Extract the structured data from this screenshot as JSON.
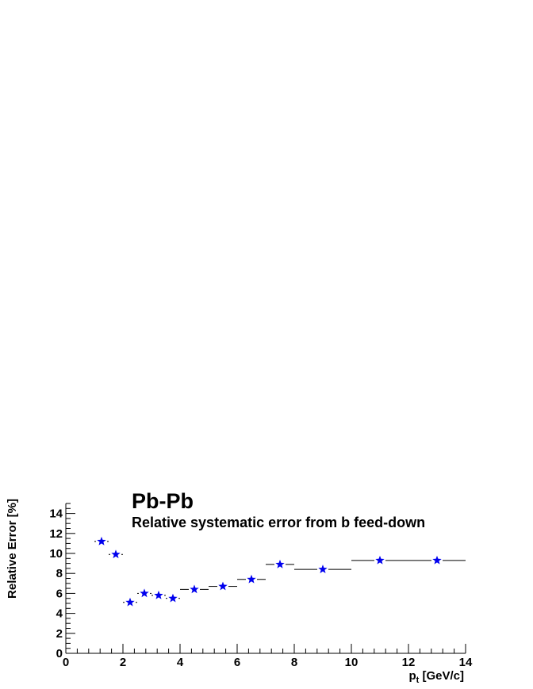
{
  "chart_data": {
    "type": "scatter",
    "title": "Pb-Pb",
    "subtitle": "Relative systematic error from b feed-down",
    "xlabel_main": "p",
    "xlabel_sub": "t",
    "xlabel_rest": " [GeV/c]",
    "ylabel": "Relative Error [%]",
    "xlim": [
      0,
      14
    ],
    "ylim": [
      0,
      15
    ],
    "x_ticks": [
      0,
      2,
      4,
      6,
      8,
      10,
      12,
      14
    ],
    "y_ticks": [
      0,
      2,
      4,
      6,
      8,
      10,
      12,
      14
    ],
    "marker": "star",
    "marker_color": "#0000ee",
    "line_color": "#000000",
    "points": [
      {
        "x_low": 1.0,
        "x_high": 1.5,
        "y": 11.2
      },
      {
        "x_low": 1.5,
        "x_high": 2.0,
        "y": 9.9
      },
      {
        "x_low": 2.0,
        "x_high": 2.5,
        "y": 5.1
      },
      {
        "x_low": 2.5,
        "x_high": 3.0,
        "y": 6.0
      },
      {
        "x_low": 3.0,
        "x_high": 3.5,
        "y": 5.8
      },
      {
        "x_low": 3.5,
        "x_high": 4.0,
        "y": 5.5
      },
      {
        "x_low": 4.0,
        "x_high": 5.0,
        "y": 6.4
      },
      {
        "x_low": 5.0,
        "x_high": 6.0,
        "y": 6.7
      },
      {
        "x_low": 6.0,
        "x_high": 7.0,
        "y": 7.4
      },
      {
        "x_low": 7.0,
        "x_high": 8.0,
        "y": 8.9
      },
      {
        "x_low": 8.0,
        "x_high": 10.0,
        "y": 8.4
      },
      {
        "x_low": 10.0,
        "x_high": 12.0,
        "y": 9.3
      },
      {
        "x_low": 12.0,
        "x_high": 14.0,
        "y": 9.3
      }
    ]
  }
}
